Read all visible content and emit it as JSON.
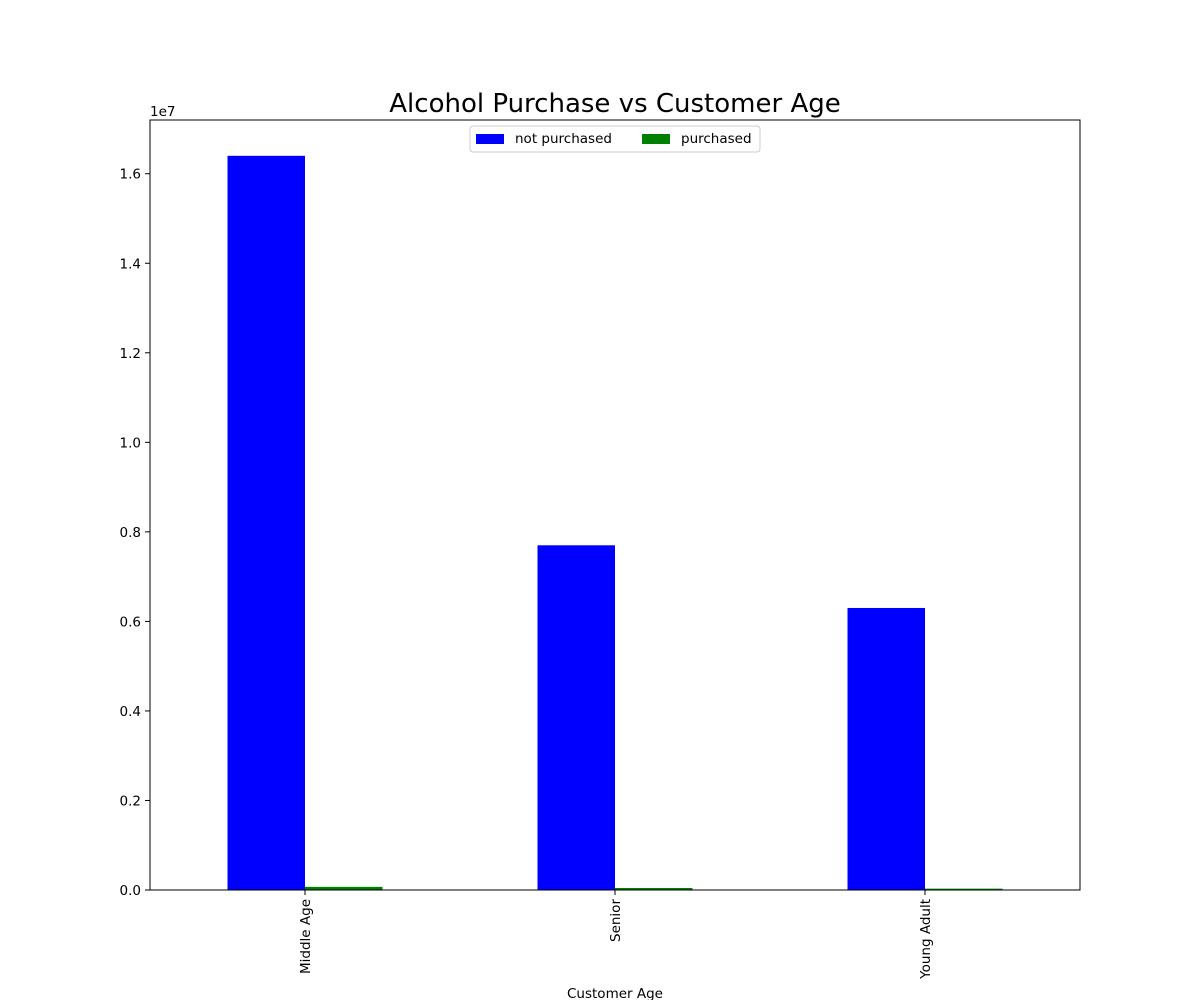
{
  "chart_data": {
    "type": "bar",
    "title": "Alcohol Purchase vs Customer Age",
    "xlabel": "Customer Age",
    "ylabel": "",
    "categories": [
      "Middle Age",
      "Senior",
      "Young Adult"
    ],
    "series": [
      {
        "name": "not purchased",
        "color": "#0000ff",
        "values": [
          16400000,
          7700000,
          6300000
        ]
      },
      {
        "name": "purchased",
        "color": "#008000",
        "values": [
          70000,
          45000,
          30000
        ]
      }
    ],
    "ylim": [
      0,
      17200000
    ],
    "y_ticks": [
      "0.0",
      "0.2",
      "0.4",
      "0.6",
      "0.8",
      "1.0",
      "1.2",
      "1.4",
      "1.6"
    ],
    "y_offset_label": "1e7",
    "grid": false,
    "legend_position": "upper center"
  }
}
